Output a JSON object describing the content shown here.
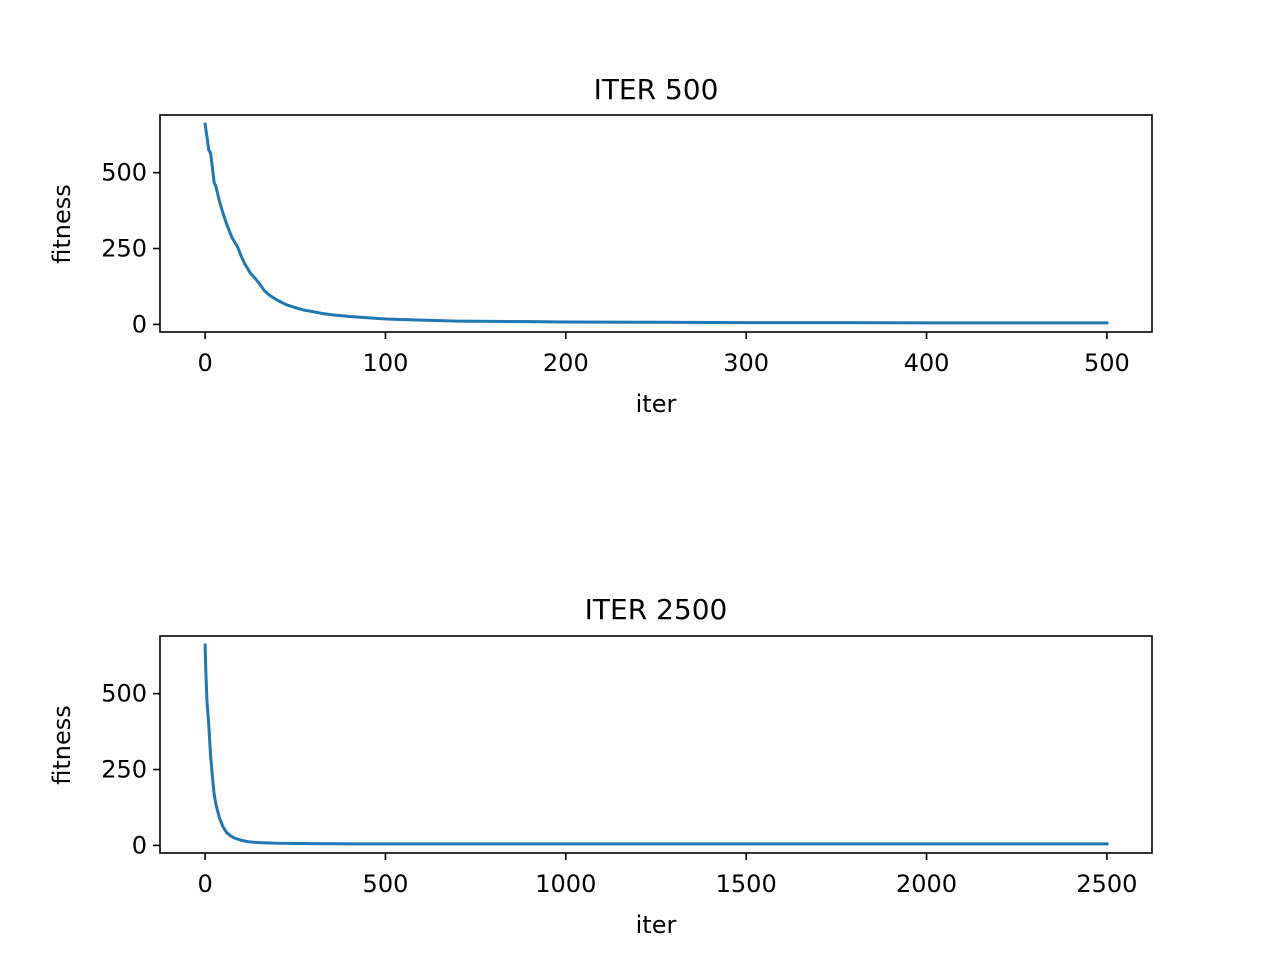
{
  "chart_data": [
    {
      "type": "line",
      "title": "ITER 500",
      "xlabel": "iter",
      "ylabel": "fitness",
      "xlim": [
        -25,
        525
      ],
      "ylim": [
        -25,
        690
      ],
      "xticks": [
        0,
        100,
        200,
        300,
        400,
        500
      ],
      "xtick_labels": [
        "0",
        "100",
        "200",
        "300",
        "400",
        "500"
      ],
      "yticks": [
        0,
        250,
        500
      ],
      "ytick_labels": [
        "0",
        "250",
        "500"
      ],
      "grid": false,
      "line_color": "#1f77b4",
      "series": [
        {
          "x": [
            0,
            1,
            2,
            3,
            4,
            5,
            6,
            8,
            10,
            12,
            15,
            18,
            20,
            22,
            25,
            28,
            30,
            33,
            36,
            40,
            45,
            50,
            55,
            60,
            65,
            70,
            80,
            90,
            100,
            120,
            140,
            160,
            180,
            200,
            250,
            300,
            350,
            400,
            450,
            500
          ],
          "y": [
            660,
            620,
            575,
            565,
            520,
            468,
            455,
            405,
            365,
            330,
            285,
            255,
            225,
            200,
            170,
            150,
            135,
            110,
            95,
            80,
            65,
            55,
            47,
            42,
            36,
            32,
            26,
            22,
            18,
            14,
            11,
            10,
            9,
            8,
            7,
            6,
            6,
            5,
            5,
            5
          ]
        }
      ]
    },
    {
      "type": "line",
      "title": "ITER 2500",
      "xlabel": "iter",
      "ylabel": "fitness",
      "xlim": [
        -125,
        2625
      ],
      "ylim": [
        -25,
        690
      ],
      "xticks": [
        0,
        500,
        1000,
        1500,
        2000,
        2500
      ],
      "xtick_labels": [
        "0",
        "500",
        "1000",
        "1500",
        "2000",
        "2500"
      ],
      "yticks": [
        0,
        250,
        500
      ],
      "ytick_labels": [
        "0",
        "250",
        "500"
      ],
      "grid": false,
      "line_color": "#1f77b4",
      "series": [
        {
          "x": [
            0,
            2,
            5,
            10,
            15,
            20,
            25,
            30,
            40,
            50,
            60,
            70,
            80,
            100,
            120,
            150,
            200,
            300,
            400,
            500,
            1000,
            1500,
            2000,
            2500
          ],
          "y": [
            660,
            575,
            480,
            400,
            300,
            230,
            170,
            135,
            90,
            60,
            42,
            32,
            25,
            17,
            12,
            9,
            7,
            6,
            5,
            5,
            5,
            5,
            5,
            5
          ]
        }
      ]
    }
  ]
}
